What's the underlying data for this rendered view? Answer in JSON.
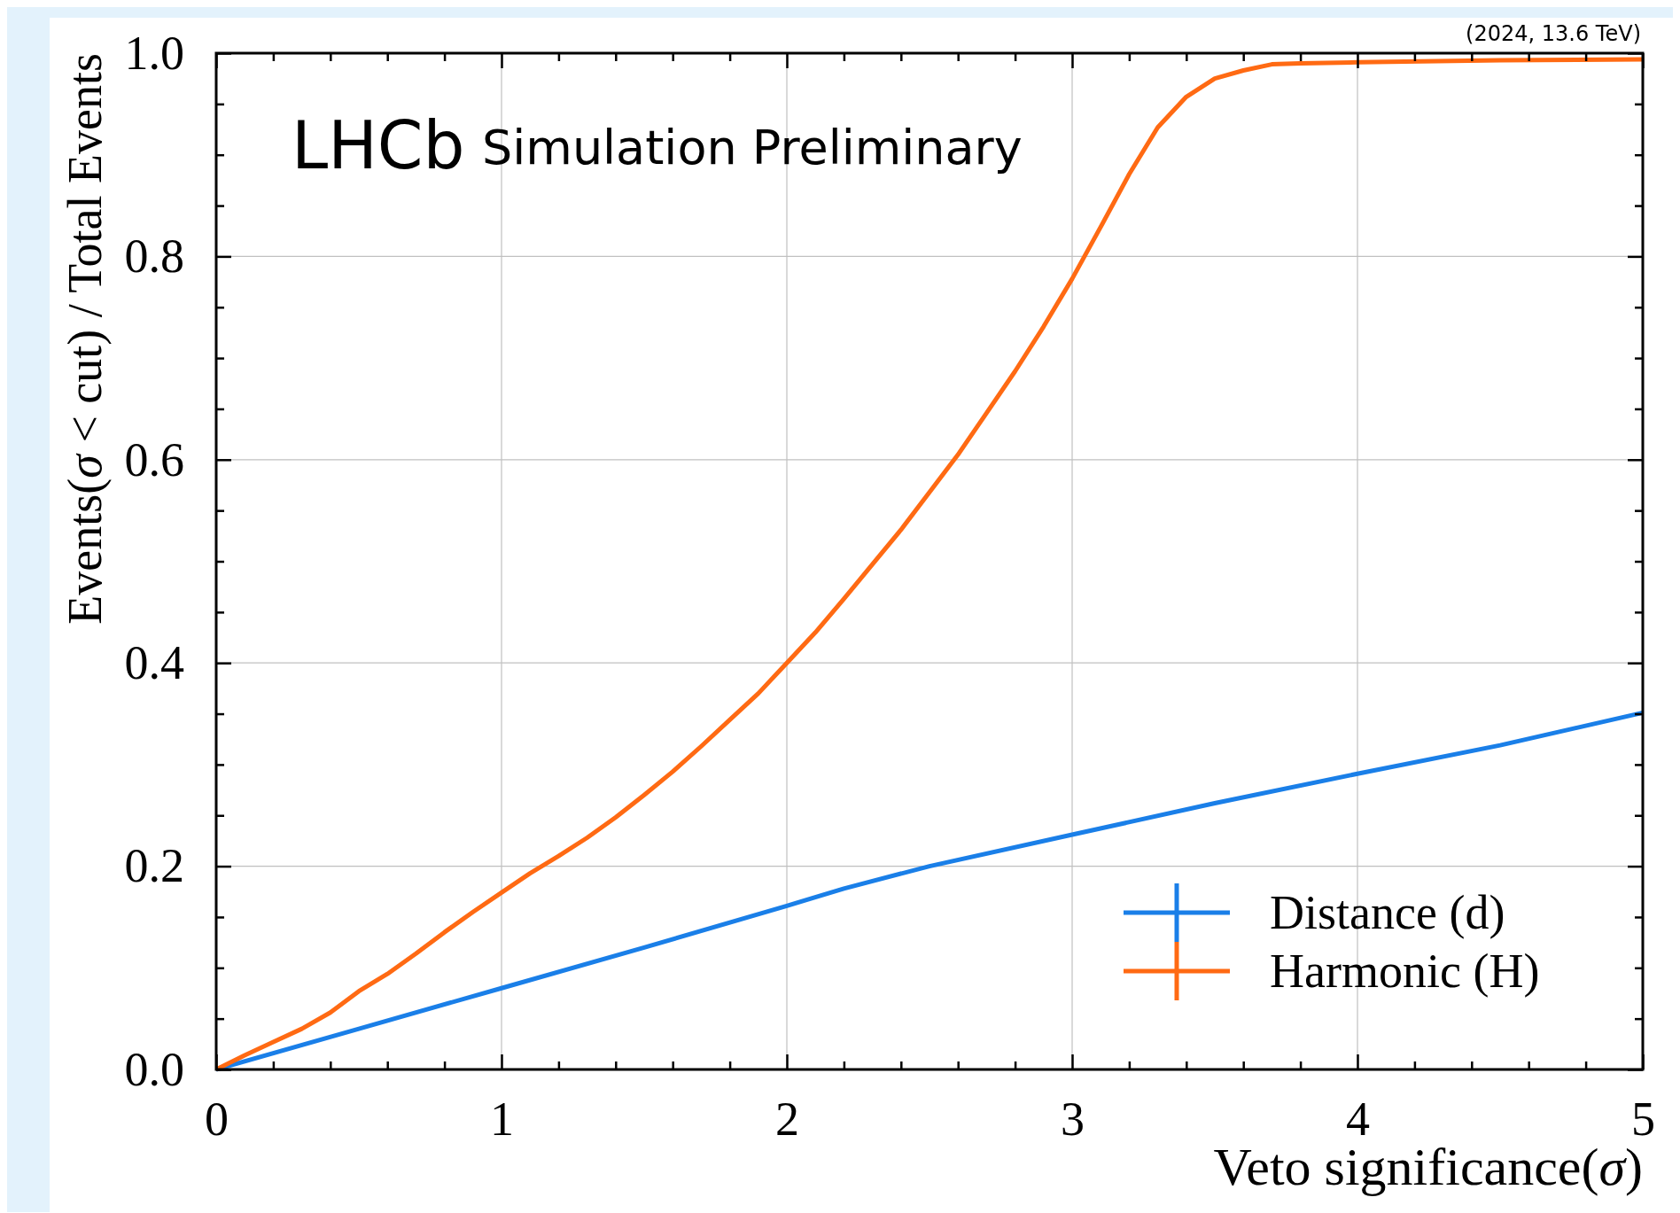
{
  "chart_data": {
    "type": "line",
    "xlabel": "Veto significance(σ)",
    "ylabel": "Events(σ < cut) / Total Events",
    "annotations": [
      "LHCb",
      "Simulation Preliminary",
      "(2024, 13.6 TeV)"
    ],
    "xlim": [
      0,
      5
    ],
    "ylim": [
      0,
      1
    ],
    "xticks": [
      0,
      {
        "value": 0.2,
        "label": null
      },
      {
        "value": 0.4,
        "label": null
      },
      {
        "value": 0.6,
        "label": null
      },
      {
        "value": 0.8,
        "label": null
      },
      1,
      {
        "value": 1.2,
        "label": null
      },
      {
        "value": 1.4,
        "label": null
      },
      {
        "value": 1.6,
        "label": null
      },
      {
        "value": 1.8,
        "label": null
      },
      2,
      {
        "value": 2.2,
        "label": null
      },
      {
        "value": 2.4,
        "label": null
      },
      {
        "value": 2.6,
        "label": null
      },
      {
        "value": 2.8,
        "label": null
      },
      3,
      {
        "value": 3.2,
        "label": null
      },
      {
        "value": 3.4,
        "label": null
      },
      {
        "value": 3.6,
        "label": null
      },
      {
        "value": 3.8,
        "label": null
      },
      4,
      {
        "value": 4.2,
        "label": null
      },
      {
        "value": 4.4,
        "label": null
      },
      {
        "value": 4.6,
        "label": null
      },
      {
        "value": 4.8,
        "label": null
      },
      5
    ],
    "yticks": [
      {
        "value": 0,
        "label": "0.0"
      },
      {
        "value": 0.05,
        "label": null
      },
      {
        "value": 0.1,
        "label": null
      },
      {
        "value": 0.15,
        "label": null
      },
      0.2,
      {
        "value": 0.25,
        "label": null
      },
      {
        "value": 0.3,
        "label": null
      },
      {
        "value": 0.35,
        "label": null
      },
      0.4,
      {
        "value": 0.45,
        "label": null
      },
      {
        "value": 0.5,
        "label": null
      },
      {
        "value": 0.55,
        "label": null
      },
      0.6,
      {
        "value": 0.65,
        "label": null
      },
      {
        "value": 0.7,
        "label": null
      },
      {
        "value": 0.75,
        "label": null
      },
      0.8,
      {
        "value": 0.85,
        "label": null
      },
      {
        "value": 0.9,
        "label": null
      },
      {
        "value": 0.95,
        "label": null
      },
      {
        "value": 1,
        "label": "1.0"
      }
    ],
    "grid": true,
    "legend": "bottom right",
    "marker": "none",
    "line_style": "solid",
    "series": [
      {
        "name": "Distance (d)",
        "color": "#1a7fe8",
        "x": [
          0,
          0.5,
          1,
          1.5,
          2,
          2.2,
          2.5,
          3,
          3.5,
          4,
          4.5,
          5
        ],
        "values": [
          0,
          0.04,
          0.08,
          0.12,
          0.161,
          0.178,
          0.2,
          0.231,
          0.262,
          0.291,
          0.319,
          0.351
        ]
      },
      {
        "name": "Harmonic (H)",
        "color": "#ff6a13",
        "x": [
          0,
          0.1,
          0.2,
          0.3,
          0.4,
          0.5,
          0.6,
          0.7,
          0.8,
          0.9,
          1,
          1.1,
          1.2,
          1.3,
          1.4,
          1.5,
          1.6,
          1.7,
          1.8,
          1.9,
          2,
          2.1,
          2.2,
          2.3,
          2.4,
          2.5,
          2.6,
          2.7,
          2.8,
          2.9,
          3,
          3.1,
          3.2,
          3.3,
          3.4,
          3.5,
          3.6,
          3.7,
          3.8,
          4,
          4.5,
          5
        ],
        "values": [
          0,
          0.014,
          0.027,
          0.04,
          0.056,
          0.077,
          0.094,
          0.114,
          0.135,
          0.155,
          0.174,
          0.193,
          0.21,
          0.228,
          0.248,
          0.27,
          0.293,
          0.318,
          0.344,
          0.37,
          0.4,
          0.43,
          0.463,
          0.497,
          0.531,
          0.568,
          0.605,
          0.646,
          0.687,
          0.731,
          0.778,
          0.829,
          0.881,
          0.927,
          0.957,
          0.975,
          0.983,
          0.989,
          0.99,
          0.991,
          0.993,
          0.994
        ]
      }
    ]
  }
}
